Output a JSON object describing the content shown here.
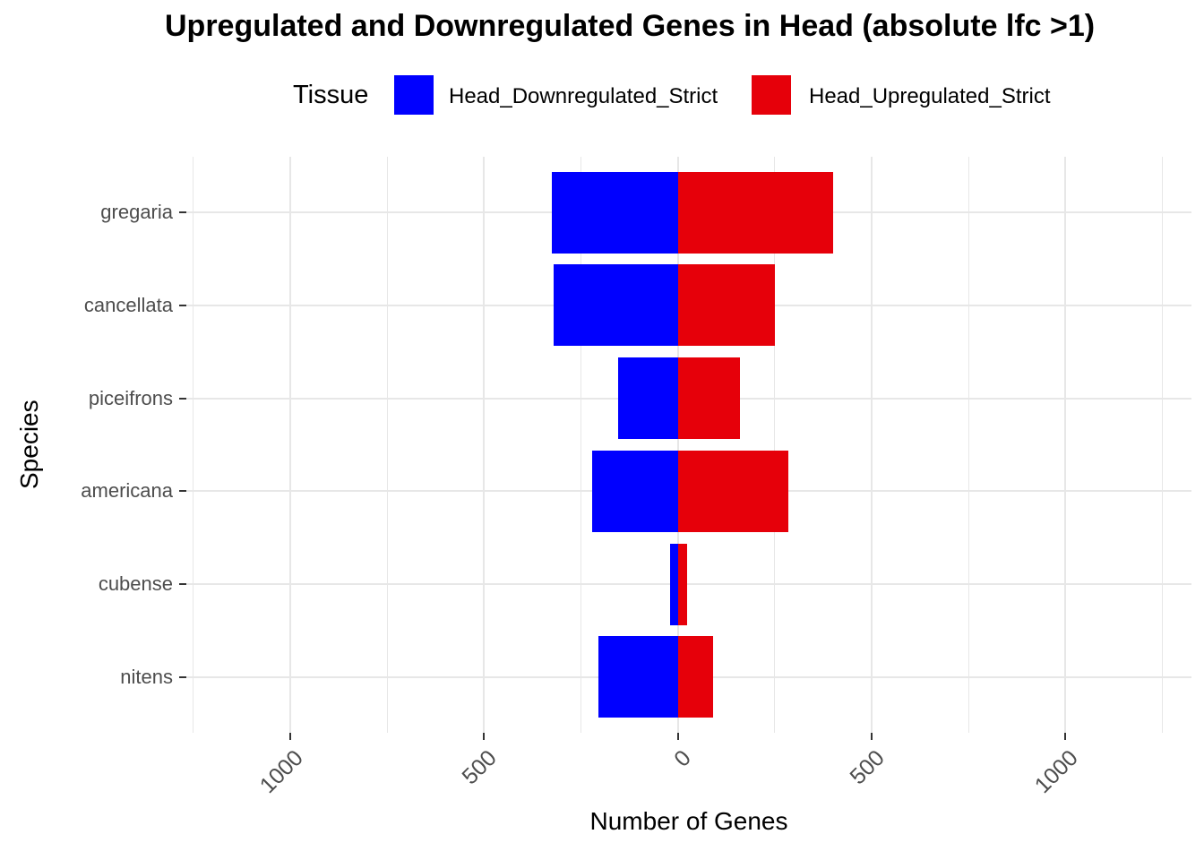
{
  "title": "Upregulated and Downregulated Genes in Head (absolute lfc >1)",
  "legend": {
    "title": "Tissue",
    "position": "top",
    "items": [
      {
        "label": "Head_Downregulated_Strict",
        "color": "#0000ff"
      },
      {
        "label": "Head_Upregulated_Strict",
        "color": "#e6000a"
      }
    ]
  },
  "chart_data": {
    "type": "bar",
    "variant": "diverging-horizontal",
    "title": "Upregulated and Downregulated Genes in Head (absolute lfc >1)",
    "xlabel": "Number of Genes",
    "ylabel": "Species",
    "categories": [
      "gregaria",
      "cancellata",
      "piceifrons",
      "americana",
      "cubense",
      "nitens"
    ],
    "series": [
      {
        "name": "Head_Downregulated_Strict",
        "side": "negative",
        "color": "#0000ff",
        "values": [
          325,
          320,
          155,
          220,
          20,
          205
        ]
      },
      {
        "name": "Head_Upregulated_Strict",
        "side": "positive",
        "color": "#e6000a",
        "values": [
          400,
          250,
          160,
          285,
          25,
          90
        ]
      }
    ],
    "x_ticks": [
      {
        "value": -1000,
        "label": "1000"
      },
      {
        "value": -500,
        "label": "500"
      },
      {
        "value": 0,
        "label": "0"
      },
      {
        "value": 500,
        "label": "500"
      },
      {
        "value": 1000,
        "label": "1000"
      }
    ],
    "x_minor_gridlines": [
      -1250,
      -750,
      -250,
      250,
      750,
      1250
    ],
    "x_domain": [
      -1268,
      1325
    ],
    "grid": true,
    "legend_position": "top",
    "bar_width_fraction": 0.88,
    "x_tick_label_angle": 45
  },
  "colors": {
    "grid": "#e7e7e7",
    "tick": "#333333",
    "axis_text": "#4d4d4d",
    "axis_title": "#000000",
    "background": "#ffffff"
  }
}
